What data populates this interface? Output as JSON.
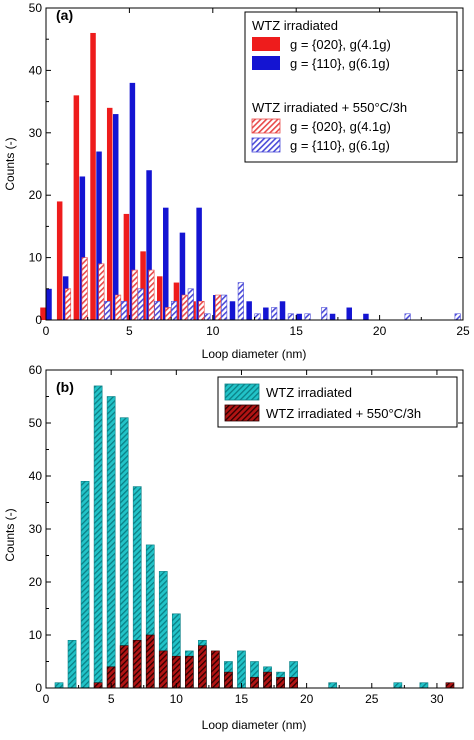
{
  "colors": {
    "red": "#ee1c1c",
    "blue": "#1414d2",
    "red_hatch": "#e84a4a",
    "blue_hatch": "#4a4ad8",
    "cyan": "#22c3c8",
    "darkred": "#b11414"
  },
  "chart_data": [
    {
      "type": "bar",
      "panel_label": "(a)",
      "xlabel": "Loop diameter (nm)",
      "ylabel": "Counts (-)",
      "xlim": [
        0,
        25
      ],
      "ylim": [
        0,
        50
      ],
      "x_ticks": [
        "0",
        "5",
        "10",
        "15",
        "20",
        "25"
      ],
      "y_ticks": [
        "0",
        "10",
        "20",
        "30",
        "40",
        "50"
      ],
      "legend_position": "top-right",
      "legend_groups": [
        {
          "title": "WTZ irradiated"
        },
        {
          "title": "WTZ irradiated + 550°C/3h"
        }
      ],
      "series": [
        {
          "name": "g = {020}, g(4.1g)",
          "group": 0,
          "style": "solid",
          "color_key": "red",
          "offset": -0.18,
          "x": [
            0,
            1,
            2,
            3,
            4,
            5,
            6,
            7,
            8,
            9
          ],
          "values": [
            2,
            19,
            36,
            46,
            34,
            17,
            11,
            7,
            6,
            3
          ]
        },
        {
          "name": "g = {110}, g(6.1g)",
          "group": 0,
          "style": "solid",
          "color_key": "blue",
          "offset": 0.18,
          "x": [
            0,
            1,
            2,
            3,
            4,
            5,
            6,
            7,
            8,
            9,
            10,
            11,
            12,
            13,
            14,
            15,
            17,
            18,
            19
          ],
          "values": [
            5,
            7,
            23,
            27,
            33,
            38,
            24,
            18,
            14,
            18,
            4,
            3,
            3,
            2,
            3,
            1,
            1,
            2,
            1
          ]
        },
        {
          "name": "g = {020}, g(4.1g)",
          "group": 1,
          "style": "hatch",
          "color_key": "red_hatch",
          "offset": -0.18,
          "x": [
            1.5,
            2.5,
            3.5,
            4.5,
            5.5,
            6.5,
            7.5,
            8.5,
            9.5,
            10.5
          ],
          "values": [
            5,
            10,
            9,
            4,
            8,
            8,
            2,
            4,
            3,
            4
          ]
        },
        {
          "name": "g = {110}, g(6.1g)",
          "group": 1,
          "style": "hatch",
          "color_key": "blue_hatch",
          "offset": 0.18,
          "x": [
            3.5,
            4.5,
            5.5,
            6.5,
            7.5,
            8.5,
            9.5,
            10.5,
            11.5,
            12.5,
            13.5,
            14.5,
            15.5,
            16.5,
            21.5,
            24.5
          ],
          "values": [
            3,
            3,
            5,
            3,
            3,
            5,
            1,
            4,
            6,
            1,
            2,
            1,
            1,
            2,
            1,
            1
          ]
        }
      ]
    },
    {
      "type": "bar",
      "panel_label": "(b)",
      "xlabel": "Loop diameter (nm)",
      "ylabel": "Counts (-)",
      "xlim": [
        0,
        32
      ],
      "ylim": [
        0,
        60
      ],
      "x_ticks": [
        "0",
        "5",
        "10",
        "15",
        "20",
        "25",
        "30"
      ],
      "y_ticks": [
        "0",
        "10",
        "20",
        "30",
        "40",
        "50",
        "60"
      ],
      "legend_position": "top-right",
      "series": [
        {
          "name": "WTZ irradiated",
          "style": "hatch",
          "color_key": "cyan",
          "offset": 0,
          "x": [
            1,
            2,
            3,
            4,
            5,
            6,
            7,
            8,
            9,
            10,
            11,
            12,
            13,
            14,
            15,
            16,
            17,
            18,
            19,
            22,
            27,
            29
          ],
          "values": [
            1,
            9,
            39,
            57,
            55,
            51,
            38,
            27,
            22,
            14,
            7,
            9,
            6,
            5,
            7,
            5,
            4,
            3,
            5,
            1,
            1,
            1
          ]
        },
        {
          "name": "WTZ irradiated + 550°C/3h",
          "style": "hatch",
          "color_key": "darkred",
          "offset": 0,
          "x": [
            4,
            5,
            6,
            7,
            8,
            9,
            10,
            11,
            12,
            13,
            14,
            16,
            17,
            18,
            19,
            31
          ],
          "values": [
            1,
            4,
            8,
            9,
            10,
            7,
            6,
            6,
            8,
            7,
            3,
            2,
            3,
            2,
            2,
            1
          ]
        }
      ]
    }
  ]
}
